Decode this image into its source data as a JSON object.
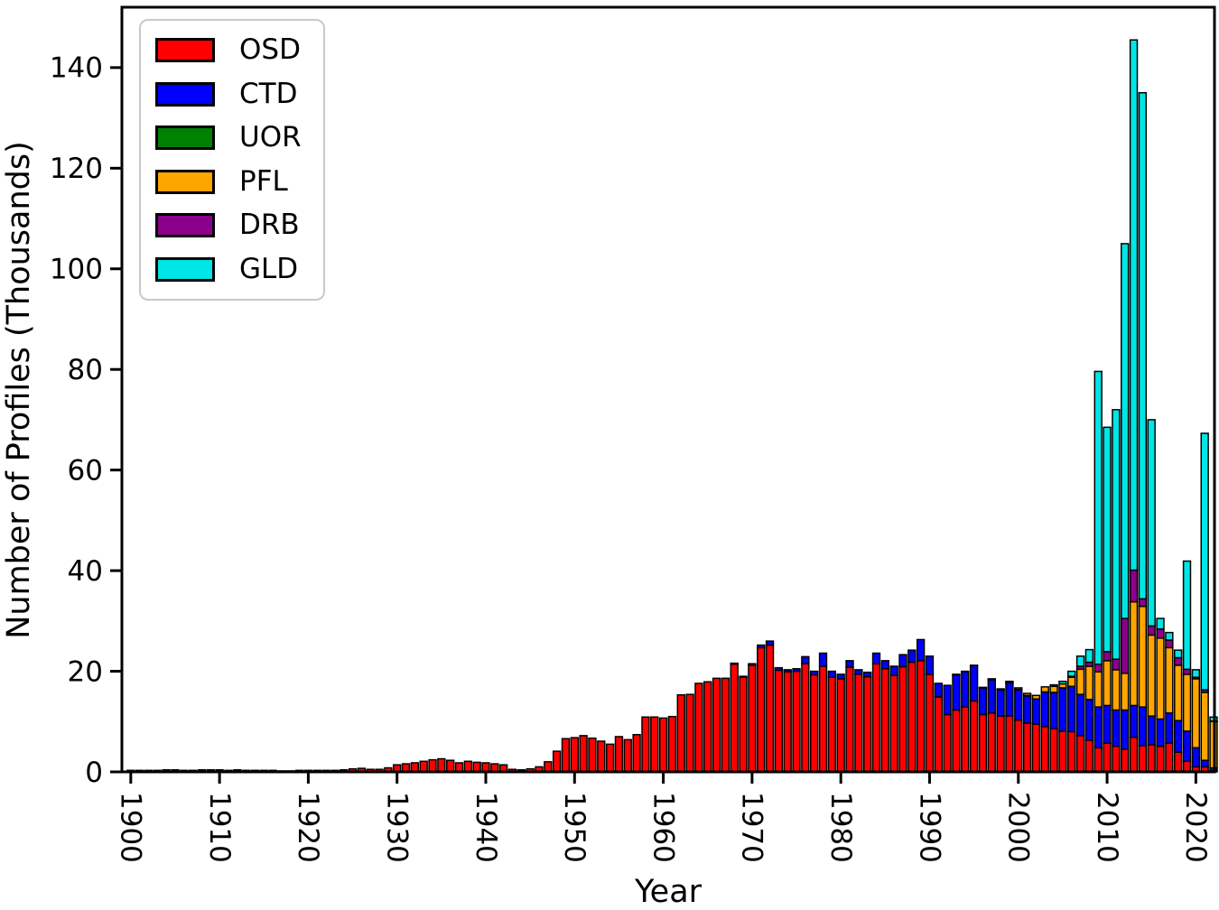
{
  "figure": {
    "background": "#ffffff"
  },
  "axes": {
    "xlabel": "Year",
    "ylabel": "Number of Profiles (Thousands)"
  },
  "legend": {
    "position": "upper-left",
    "items": [
      {
        "label": "OSD",
        "color": "#ff0000"
      },
      {
        "label": "CTD",
        "color": "#0000ff"
      },
      {
        "label": "UOR",
        "color": "#008000"
      },
      {
        "label": "PFL",
        "color": "#ffa500"
      },
      {
        "label": "DRB",
        "color": "#8b008b"
      },
      {
        "label": "GLD",
        "color": "#00e6e6"
      }
    ]
  },
  "chart_data": {
    "type": "bar",
    "stacked": true,
    "title": "",
    "xlabel": "Year",
    "ylabel": "Number of Profiles (Thousands)",
    "xlim": [
      1899,
      2022.1
    ],
    "ylim": [
      0,
      152
    ],
    "xticks": [
      1900,
      1910,
      1920,
      1930,
      1940,
      1950,
      1960,
      1970,
      1980,
      1990,
      2000,
      2010,
      2020
    ],
    "yticks": [
      0,
      20,
      40,
      60,
      80,
      100,
      120,
      140
    ],
    "grid": false,
    "bar_edge_color": "#000000",
    "legend_position": "upper-left",
    "years": [
      1900,
      1901,
      1902,
      1903,
      1904,
      1905,
      1906,
      1907,
      1908,
      1909,
      1910,
      1911,
      1912,
      1913,
      1914,
      1915,
      1916,
      1917,
      1918,
      1919,
      1920,
      1921,
      1922,
      1923,
      1924,
      1925,
      1926,
      1927,
      1928,
      1929,
      1930,
      1931,
      1932,
      1933,
      1934,
      1935,
      1936,
      1937,
      1938,
      1939,
      1940,
      1941,
      1942,
      1943,
      1944,
      1945,
      1946,
      1947,
      1948,
      1949,
      1950,
      1951,
      1952,
      1953,
      1954,
      1955,
      1956,
      1957,
      1958,
      1959,
      1960,
      1961,
      1962,
      1963,
      1964,
      1965,
      1966,
      1967,
      1968,
      1969,
      1970,
      1971,
      1972,
      1973,
      1974,
      1975,
      1976,
      1977,
      1978,
      1979,
      1980,
      1981,
      1982,
      1983,
      1984,
      1985,
      1986,
      1987,
      1988,
      1989,
      1990,
      1991,
      1992,
      1993,
      1994,
      1995,
      1996,
      1997,
      1998,
      1999,
      2000,
      2001,
      2002,
      2003,
      2004,
      2005,
      2006,
      2007,
      2008,
      2009,
      2010,
      2011,
      2012,
      2013,
      2014,
      2015,
      2016,
      2017,
      2018,
      2019,
      2020,
      2021,
      2022
    ],
    "series": [
      {
        "name": "OSD",
        "color": "#ff0000",
        "values": [
          0.3,
          0.3,
          0.3,
          0.3,
          0.4,
          0.4,
          0.3,
          0.3,
          0.4,
          0.4,
          0.4,
          0.3,
          0.4,
          0.3,
          0.3,
          0.3,
          0.3,
          0.2,
          0.2,
          0.3,
          0.3,
          0.3,
          0.3,
          0.3,
          0.4,
          0.6,
          0.7,
          0.5,
          0.5,
          0.8,
          1.4,
          1.6,
          1.8,
          2.1,
          2.4,
          2.6,
          2.3,
          1.8,
          2.1,
          1.9,
          1.8,
          1.6,
          1.4,
          0.5,
          0.4,
          0.6,
          1.0,
          2.0,
          4.1,
          6.6,
          6.8,
          7.2,
          6.7,
          6.1,
          5.5,
          7.0,
          6.4,
          7.4,
          10.9,
          10.9,
          10.7,
          11.0,
          15.3,
          15.4,
          17.6,
          17.9,
          18.6,
          18.6,
          21.4,
          18.8,
          21.2,
          24.7,
          25.2,
          20.2,
          19.9,
          20.0,
          21.5,
          19.3,
          21.0,
          18.8,
          18.5,
          20.8,
          19.4,
          18.9,
          21.5,
          20.5,
          19.2,
          20.9,
          21.8,
          22.1,
          19.4,
          14.9,
          11.4,
          12.3,
          12.9,
          14.1,
          11.4,
          11.7,
          11.1,
          11.1,
          10.3,
          9.7,
          9.5,
          9.0,
          8.6,
          8.1,
          8.0,
          7.2,
          6.3,
          4.8,
          5.7,
          5.1,
          4.5,
          6.9,
          5.2,
          5.4,
          5.1,
          5.7,
          3.9,
          2.1,
          1.0,
          1.0,
          0.3
        ]
      },
      {
        "name": "CTD",
        "color": "#0000ff",
        "values": [
          0,
          0,
          0,
          0,
          0,
          0,
          0,
          0,
          0,
          0,
          0,
          0,
          0,
          0,
          0,
          0,
          0,
          0,
          0,
          0,
          0,
          0,
          0,
          0,
          0,
          0,
          0,
          0,
          0,
          0,
          0,
          0,
          0,
          0,
          0,
          0,
          0,
          0,
          0,
          0,
          0,
          0,
          0,
          0,
          0,
          0,
          0,
          0,
          0,
          0,
          0,
          0,
          0,
          0,
          0,
          0,
          0,
          0,
          0,
          0,
          0,
          0,
          0,
          0,
          0,
          0,
          0,
          0,
          0.2,
          0.2,
          0.3,
          0.5,
          0.8,
          0.5,
          0.4,
          0.5,
          1.4,
          0.7,
          2.6,
          1.2,
          0.9,
          1.3,
          0.9,
          0.9,
          2.1,
          1.6,
          1.8,
          2.4,
          2.4,
          4.2,
          3.6,
          2.7,
          5.8,
          7.0,
          7.0,
          7.0,
          5.3,
          6.6,
          5.2,
          6.6,
          6.0,
          5.4,
          5.0,
          6.9,
          7.2,
          8.6,
          9.0,
          8.2,
          8.1,
          8.1,
          7.5,
          7.2,
          7.8,
          6.3,
          7.7,
          5.7,
          5.4,
          6.0,
          6.3,
          6.0,
          3.8,
          1.3,
          0.5
        ]
      },
      {
        "name": "UOR",
        "color": "#008000",
        "values": [
          0,
          0,
          0,
          0,
          0,
          0,
          0,
          0,
          0,
          0,
          0,
          0,
          0,
          0,
          0,
          0,
          0,
          0,
          0,
          0,
          0,
          0,
          0,
          0,
          0,
          0,
          0,
          0,
          0,
          0,
          0,
          0,
          0,
          0,
          0,
          0,
          0,
          0,
          0,
          0,
          0,
          0,
          0,
          0,
          0,
          0,
          0,
          0,
          0,
          0,
          0,
          0,
          0,
          0,
          0,
          0,
          0,
          0,
          0,
          0,
          0,
          0,
          0,
          0,
          0,
          0,
          0,
          0,
          0,
          0,
          0,
          0,
          0,
          0,
          0,
          0,
          0,
          0,
          0,
          0,
          0,
          0,
          0,
          0,
          0,
          0,
          0,
          0,
          0,
          0,
          0,
          0,
          0,
          0.1,
          0.1,
          0.1,
          0.1,
          0.1,
          0.1,
          0.1,
          0.1,
          0.1,
          0,
          0,
          0,
          0,
          0,
          0,
          0,
          0,
          0,
          0,
          0,
          0,
          0,
          0,
          0,
          0,
          0,
          0,
          0,
          0,
          0
        ]
      },
      {
        "name": "PFL",
        "color": "#ffa500",
        "values": [
          0,
          0,
          0,
          0,
          0,
          0,
          0,
          0,
          0,
          0,
          0,
          0,
          0,
          0,
          0,
          0,
          0,
          0,
          0,
          0,
          0,
          0,
          0,
          0,
          0,
          0,
          0,
          0,
          0,
          0,
          0,
          0,
          0,
          0,
          0,
          0,
          0,
          0,
          0,
          0,
          0,
          0,
          0,
          0,
          0,
          0,
          0,
          0,
          0,
          0,
          0,
          0,
          0,
          0,
          0,
          0,
          0,
          0,
          0,
          0,
          0,
          0,
          0,
          0,
          0,
          0,
          0,
          0,
          0,
          0,
          0,
          0,
          0,
          0,
          0,
          0,
          0,
          0,
          0,
          0,
          0,
          0,
          0,
          0,
          0,
          0,
          0,
          0,
          0,
          0,
          0,
          0,
          0,
          0,
          0,
          0,
          0,
          0.1,
          0.1,
          0.2,
          0.3,
          0.4,
          0.7,
          1.0,
          1.2,
          0.8,
          1.8,
          5.0,
          6.6,
          7.0,
          8.9,
          8.0,
          7.3,
          20.6,
          20.0,
          16.1,
          16.1,
          13.0,
          11.0,
          11.3,
          13.7,
          13.5,
          9.2
        ]
      },
      {
        "name": "DRB",
        "color": "#8b008b",
        "values": [
          0,
          0,
          0,
          0,
          0,
          0,
          0,
          0,
          0,
          0,
          0,
          0,
          0,
          0,
          0,
          0,
          0,
          0,
          0,
          0,
          0,
          0,
          0,
          0,
          0,
          0,
          0,
          0,
          0,
          0,
          0,
          0,
          0,
          0,
          0,
          0,
          0,
          0,
          0,
          0,
          0,
          0,
          0,
          0,
          0,
          0,
          0,
          0,
          0,
          0,
          0,
          0,
          0,
          0,
          0,
          0,
          0,
          0,
          0,
          0,
          0,
          0,
          0,
          0,
          0,
          0,
          0,
          0,
          0,
          0,
          0,
          0,
          0,
          0,
          0,
          0,
          0,
          0,
          0,
          0,
          0,
          0,
          0,
          0,
          0,
          0,
          0,
          0,
          0,
          0,
          0,
          0,
          0,
          0,
          0,
          0,
          0,
          0,
          0,
          0,
          0,
          0,
          0,
          0,
          0,
          0,
          0.2,
          0.6,
          0.8,
          1.5,
          1.8,
          2.1,
          10.9,
          6.3,
          1.5,
          1.8,
          1.8,
          1.5,
          1.5,
          1.0,
          0.3,
          0.5,
          0.1
        ]
      },
      {
        "name": "GLD",
        "color": "#00e6e6",
        "values": [
          0,
          0,
          0,
          0,
          0,
          0,
          0,
          0,
          0,
          0,
          0,
          0,
          0,
          0,
          0,
          0,
          0,
          0,
          0,
          0,
          0,
          0,
          0,
          0,
          0,
          0,
          0,
          0,
          0,
          0,
          0,
          0,
          0,
          0,
          0,
          0,
          0,
          0,
          0,
          0,
          0,
          0,
          0,
          0,
          0,
          0,
          0,
          0,
          0,
          0,
          0,
          0,
          0,
          0,
          0,
          0,
          0,
          0,
          0,
          0,
          0,
          0,
          0,
          0,
          0,
          0,
          0,
          0,
          0,
          0,
          0,
          0,
          0,
          0,
          0,
          0,
          0,
          0,
          0,
          0,
          0,
          0,
          0,
          0,
          0,
          0,
          0,
          0,
          0,
          0,
          0,
          0,
          0,
          0,
          0,
          0,
          0,
          0,
          0,
          0,
          0,
          0,
          0,
          0,
          0.3,
          0.5,
          1.0,
          2.0,
          2.5,
          58.2,
          44.6,
          49.6,
          74.5,
          105.4,
          100.6,
          41.0,
          2.1,
          1.5,
          1.5,
          21.5,
          1.5,
          51.0,
          0.8
        ]
      }
    ]
  }
}
